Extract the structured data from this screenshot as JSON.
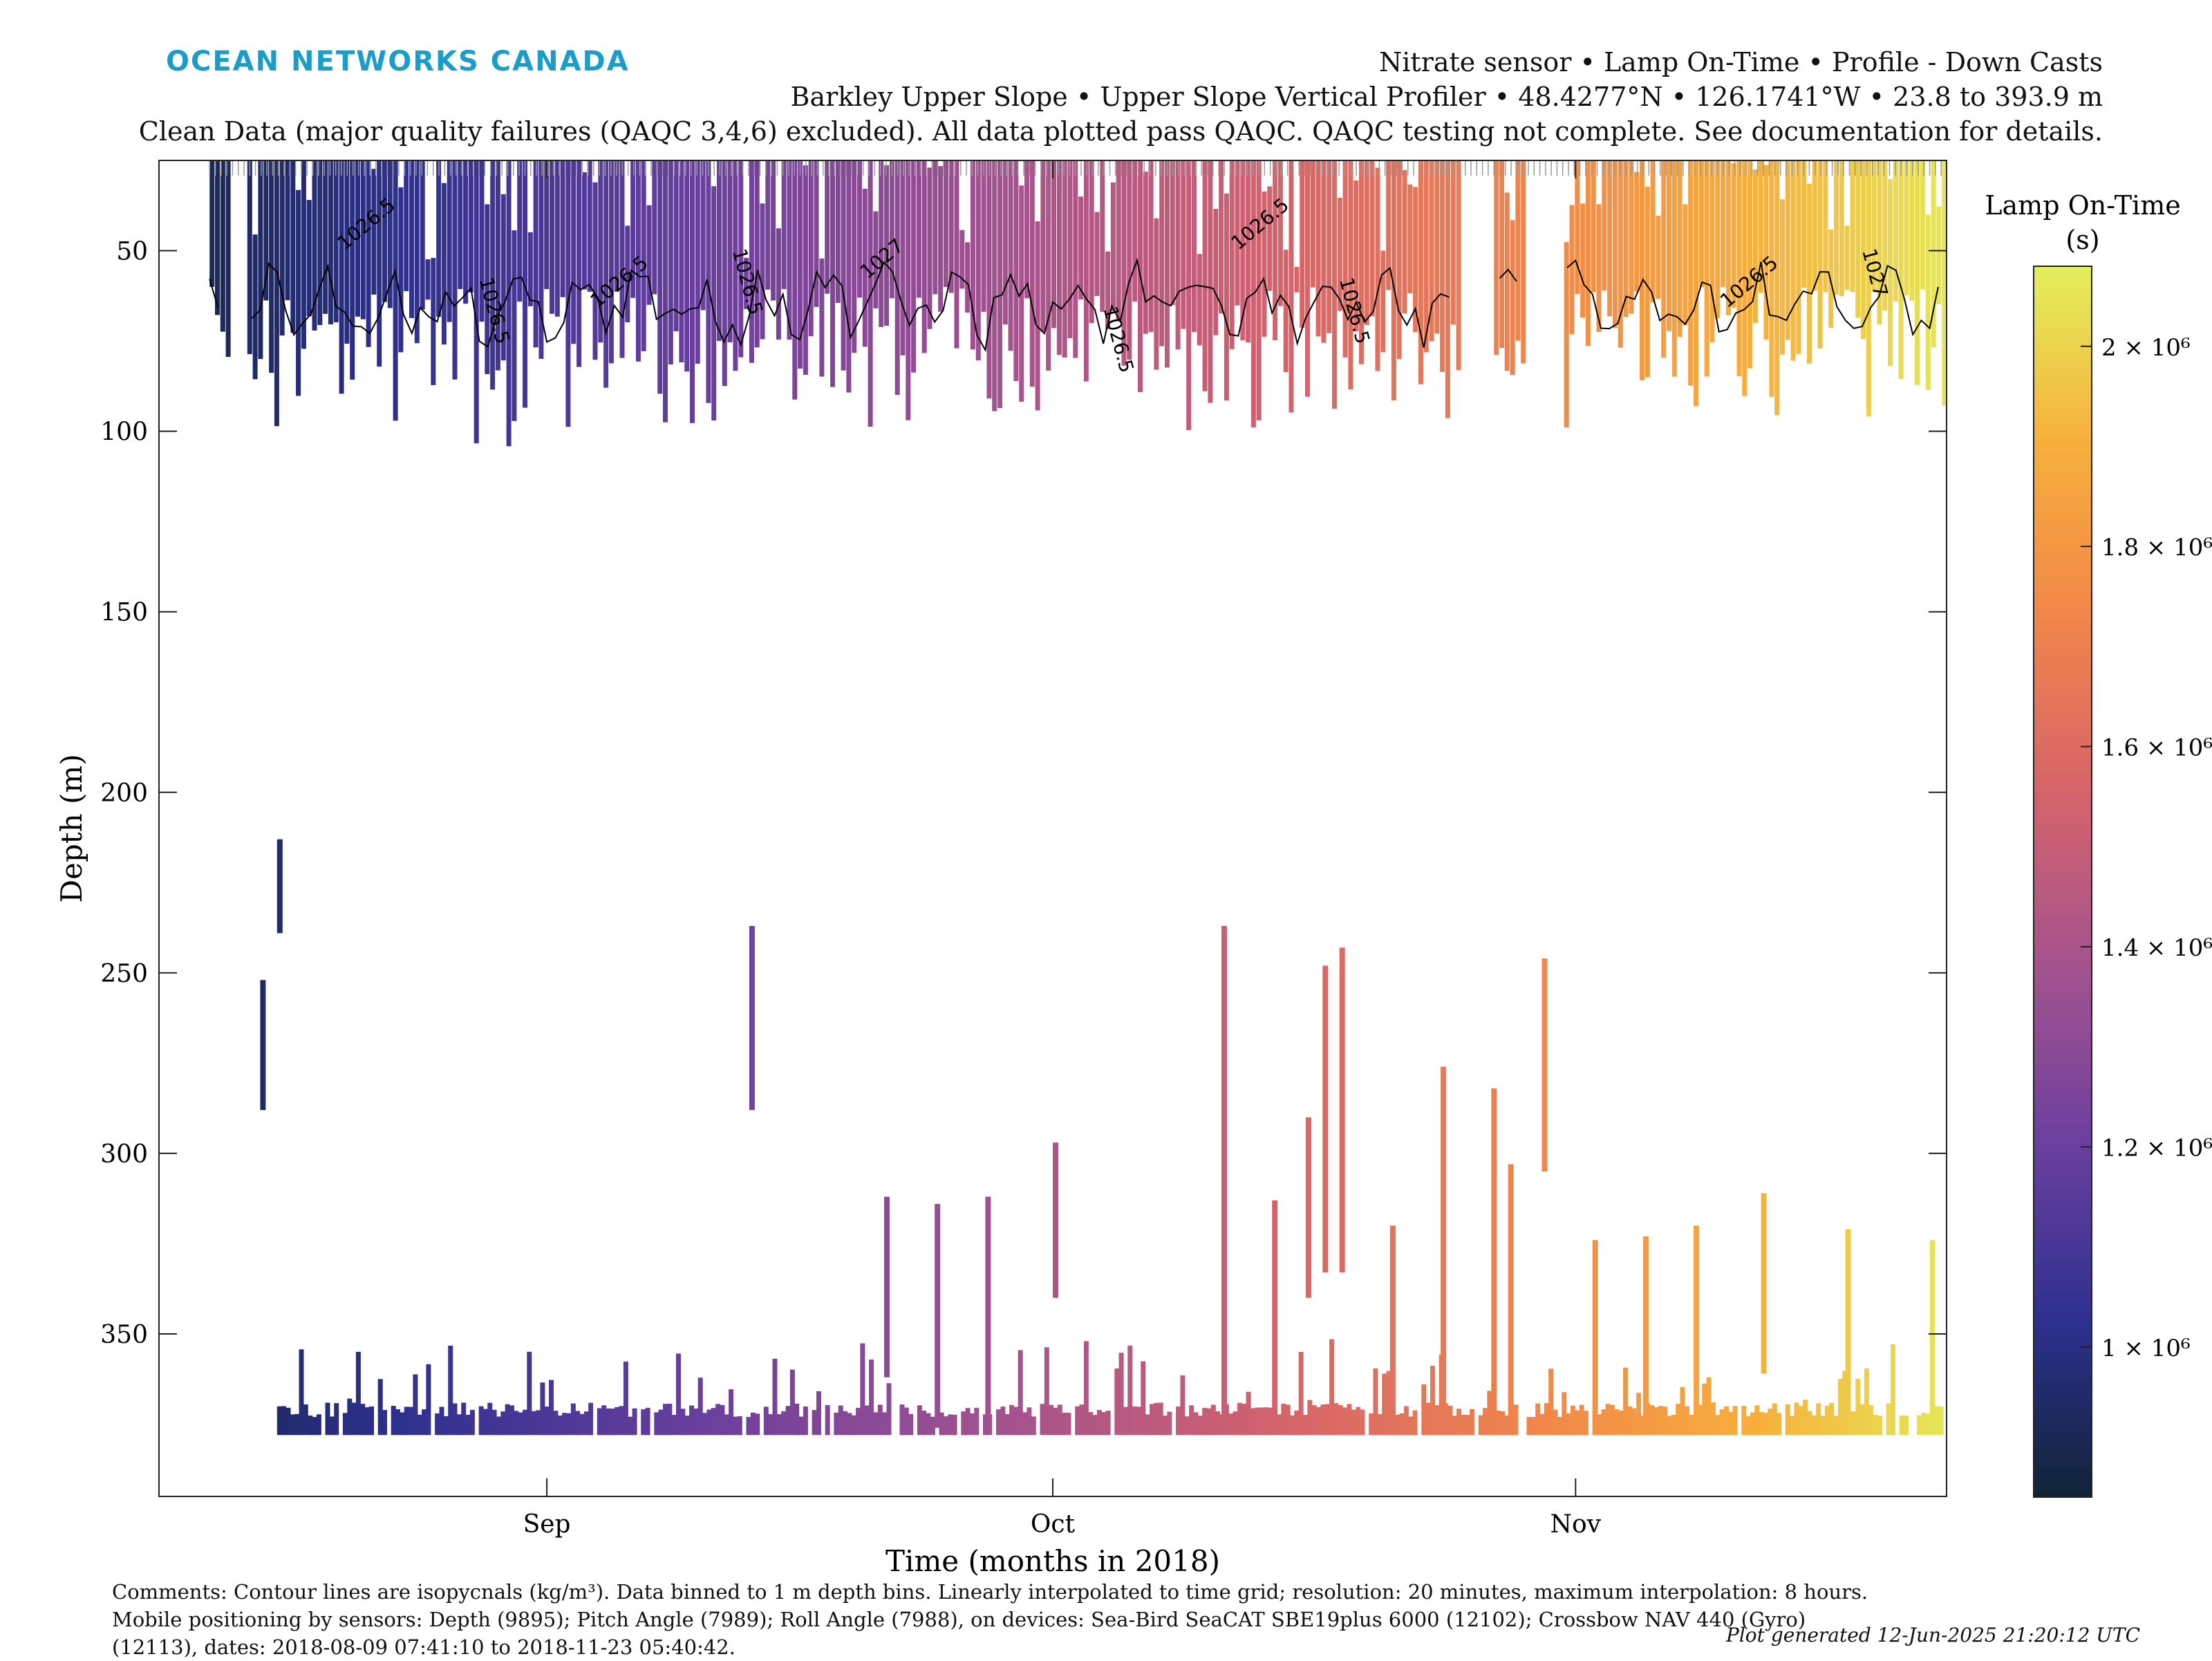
{
  "logo": "OCEAN NETWORKS CANADA",
  "header": {
    "line1": "Nitrate sensor • Lamp On-Time • Profile - Down Casts",
    "line2": "Barkley Upper Slope • Upper Slope Vertical Profiler • 48.4277°N • 126.1741°W • 23.8 to 393.9 m",
    "line3": "Clean Data (major quality failures (QAQC 3,4,6) excluded). All data plotted pass QAQC. QAQC testing not complete. See documentation for details."
  },
  "comments": "Comments: Contour lines are isopycnals (kg/m³). Data binned to 1 m depth bins. Linearly interpolated to time grid; resolution: 20 minutes, maximum interpolation: 8 hours. Mobile positioning by sensors: Depth (9895); Pitch Angle (7989); Roll Angle (7988), on devices: Sea-Bird SeaCAT SBE19plus 6000 (12102); Crossbow NAV 440 (Gyro) (12113), dates: 2018-08-09 07:41:10 to 2018-11-23 05:40:42.",
  "generated": "Plot generated 12-Jun-2025 21:20:12 UTC",
  "chart_data": {
    "type": "heatmap",
    "xlabel": "Time (months in 2018)",
    "ylabel": "Depth (m)",
    "x_range": [
      "2018-08-09",
      "2018-11-23"
    ],
    "x_ticks": [
      {
        "label": "Sep",
        "date": "2018-09-01"
      },
      {
        "label": "Oct",
        "date": "2018-10-01"
      },
      {
        "label": "Nov",
        "date": "2018-11-01"
      }
    ],
    "ylim": [
      25,
      395
    ],
    "y_reversed": true,
    "y_ticks": [
      50,
      100,
      150,
      200,
      250,
      300,
      350
    ],
    "colorbar": {
      "title_line1": "Lamp On-Time",
      "title_line2": "(s)",
      "range": [
        850000,
        2080000
      ],
      "ticks": [
        {
          "value": 1000000,
          "label": "1 × 10⁶"
        },
        {
          "value": 1200000,
          "label": "1.2 × 10⁶"
        },
        {
          "value": 1400000,
          "label": "1.4 × 10⁶"
        },
        {
          "value": 1600000,
          "label": "1.6 × 10⁶"
        },
        {
          "value": 1800000,
          "label": "1.8 × 10⁶"
        },
        {
          "value": 2000000,
          "label": "2 × 10⁶"
        }
      ],
      "colors": [
        "#0f2337",
        "#2e308f",
        "#6a3f9e",
        "#a3528f",
        "#d5636c",
        "#f1864a",
        "#f7af3c",
        "#e3ef5c"
      ]
    },
    "lamp_on_time_trend": [
      {
        "date": "2018-08-10",
        "value": 900000
      },
      {
        "date": "2018-09-10",
        "value": 1200000
      },
      {
        "date": "2018-10-10",
        "value": 1500000
      },
      {
        "date": "2018-11-01",
        "value": 1760000
      },
      {
        "date": "2018-11-23",
        "value": 2060000
      }
    ],
    "upper_layer": {
      "top_m": 25,
      "bottom_m_range": [
        60,
        105
      ]
    },
    "bottom_layer": {
      "top_m": 373,
      "bottom_m": 378
    },
    "contour_labels": [
      "1026.5",
      "1027"
    ],
    "deep_profiles": [
      {
        "date": "2018-08-15",
        "from": 252,
        "to": 288
      },
      {
        "date": "2018-08-16",
        "from": 213,
        "to": 239
      },
      {
        "date": "2018-09-13",
        "from": 237,
        "to": 288
      },
      {
        "date": "2018-09-21",
        "from": 312,
        "to": 362
      },
      {
        "date": "2018-09-24",
        "from": 314,
        "to": 376
      },
      {
        "date": "2018-09-27",
        "from": 312,
        "to": 376
      },
      {
        "date": "2018-10-01",
        "from": 297,
        "to": 340
      },
      {
        "date": "2018-10-11",
        "from": 237,
        "to": 376
      },
      {
        "date": "2018-10-14",
        "from": 313,
        "to": 376
      },
      {
        "date": "2018-10-16",
        "from": 290,
        "to": 340
      },
      {
        "date": "2018-10-17",
        "from": 248,
        "to": 333
      },
      {
        "date": "2018-10-18",
        "from": 243,
        "to": 333
      },
      {
        "date": "2018-10-21",
        "from": 320,
        "to": 376
      },
      {
        "date": "2018-10-24",
        "from": 276,
        "to": 376
      },
      {
        "date": "2018-10-27",
        "from": 282,
        "to": 376
      },
      {
        "date": "2018-10-28",
        "from": 303,
        "to": 376
      },
      {
        "date": "2018-10-30",
        "from": 246,
        "to": 305
      },
      {
        "date": "2018-11-02",
        "from": 324,
        "to": 376
      },
      {
        "date": "2018-11-05",
        "from": 323,
        "to": 376
      },
      {
        "date": "2018-11-08",
        "from": 320,
        "to": 376
      },
      {
        "date": "2018-11-12",
        "from": 311,
        "to": 361
      },
      {
        "date": "2018-11-17",
        "from": 321,
        "to": 376
      },
      {
        "date": "2018-11-22",
        "from": 324,
        "to": 376
      }
    ]
  }
}
